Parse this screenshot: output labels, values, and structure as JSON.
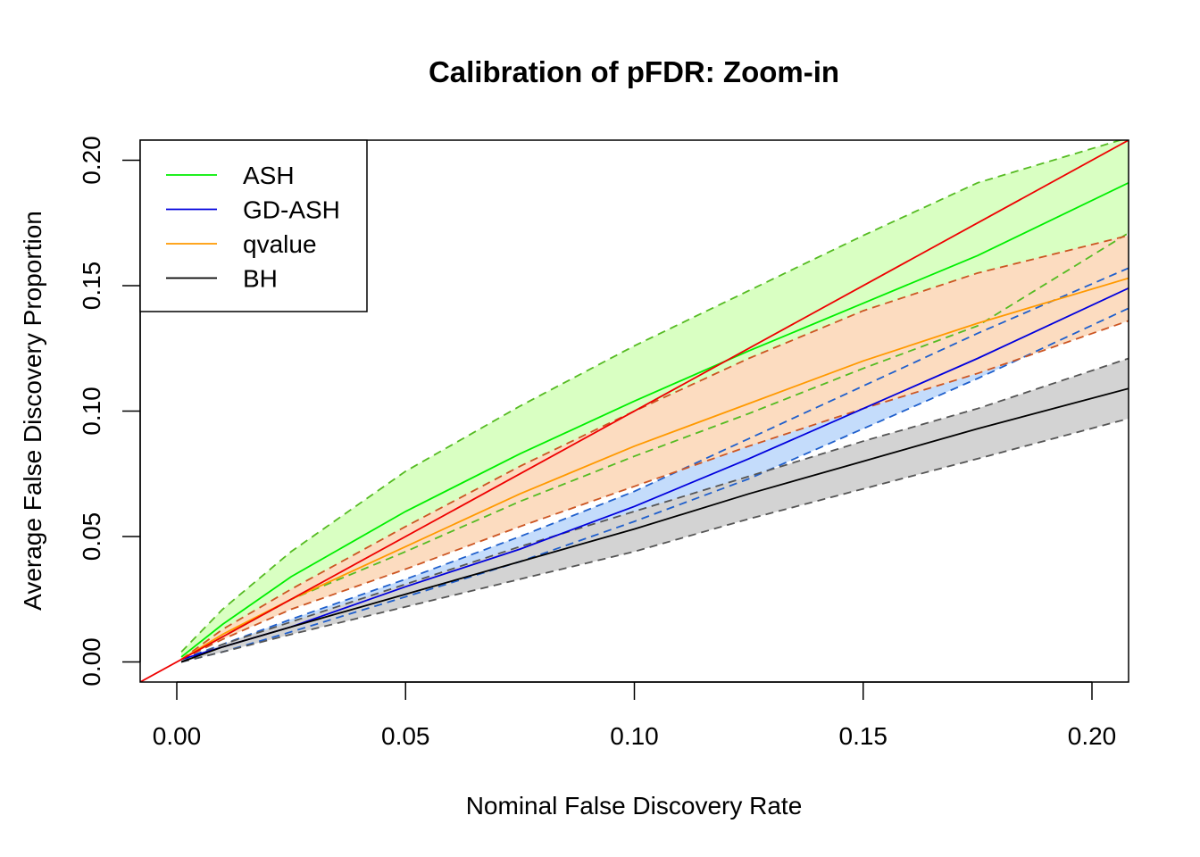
{
  "chart_data": {
    "type": "line",
    "title": "Calibration of pFDR: Zoom-in",
    "xlabel": "Nominal False Discovery Rate",
    "ylabel": "Average False Discovery Proportion",
    "xlim": [
      -0.008,
      0.208
    ],
    "ylim": [
      -0.008,
      0.208
    ],
    "xticks": [
      0.0,
      0.05,
      0.1,
      0.15,
      0.2
    ],
    "xtick_labels": [
      "0.00",
      "0.05",
      "0.10",
      "0.15",
      "0.20"
    ],
    "yticks": [
      0.0,
      0.05,
      0.1,
      0.15,
      0.2
    ],
    "ytick_labels": [
      "0.00",
      "0.05",
      "0.10",
      "0.15",
      "0.20"
    ],
    "grid": false,
    "legend_position": "top-left",
    "reference_line": {
      "x": [
        -0.008,
        0.208
      ],
      "y": [
        -0.008,
        0.208
      ],
      "color": "#ee0000"
    },
    "x": [
      0.001,
      0.01,
      0.025,
      0.05,
      0.075,
      0.1,
      0.125,
      0.15,
      0.175,
      0.208
    ],
    "series": [
      {
        "name": "ASH",
        "color": "#00ee00",
        "fill": "#d9ffc2",
        "dash_color": "#55bb22",
        "mean": [
          0.002,
          0.015,
          0.034,
          0.06,
          0.083,
          0.104,
          0.124,
          0.143,
          0.162,
          0.191
        ],
        "lower": [
          0.001,
          0.01,
          0.025,
          0.044,
          0.064,
          0.082,
          0.099,
          0.117,
          0.134,
          0.171
        ],
        "upper": [
          0.004,
          0.021,
          0.044,
          0.076,
          0.102,
          0.126,
          0.148,
          0.17,
          0.191,
          0.209
        ]
      },
      {
        "name": "GD-ASH",
        "color": "#0000dd",
        "fill": "#c4dcfb",
        "dash_color": "#1f5fcc",
        "mean": [
          0.001,
          0.006,
          0.014,
          0.03,
          0.045,
          0.062,
          0.081,
          0.101,
          0.121,
          0.149
        ],
        "lower": [
          0.0,
          0.004,
          0.012,
          0.026,
          0.04,
          0.056,
          0.073,
          0.093,
          0.113,
          0.141
        ],
        "upper": [
          0.001,
          0.007,
          0.017,
          0.033,
          0.05,
          0.068,
          0.089,
          0.11,
          0.131,
          0.157
        ]
      },
      {
        "name": "qvalue",
        "color": "#ff9900",
        "fill": "#fcdcc0",
        "dash_color": "#cc5522",
        "mean": [
          0.001,
          0.011,
          0.025,
          0.046,
          0.067,
          0.086,
          0.103,
          0.12,
          0.135,
          0.153
        ],
        "lower": [
          0.001,
          0.009,
          0.021,
          0.037,
          0.054,
          0.07,
          0.086,
          0.101,
          0.115,
          0.136
        ],
        "upper": [
          0.001,
          0.013,
          0.029,
          0.054,
          0.078,
          0.1,
          0.121,
          0.14,
          0.155,
          0.17
        ]
      },
      {
        "name": "BH",
        "color": "#000000",
        "fill": "#d3d3d3",
        "dash_color": "#555555",
        "mean": [
          0.0,
          0.006,
          0.014,
          0.027,
          0.04,
          0.053,
          0.067,
          0.08,
          0.093,
          0.109
        ],
        "lower": [
          0.0,
          0.004,
          0.011,
          0.022,
          0.033,
          0.044,
          0.057,
          0.069,
          0.081,
          0.097
        ],
        "upper": [
          0.0,
          0.007,
          0.016,
          0.031,
          0.046,
          0.06,
          0.074,
          0.088,
          0.101,
          0.121
        ]
      }
    ]
  }
}
